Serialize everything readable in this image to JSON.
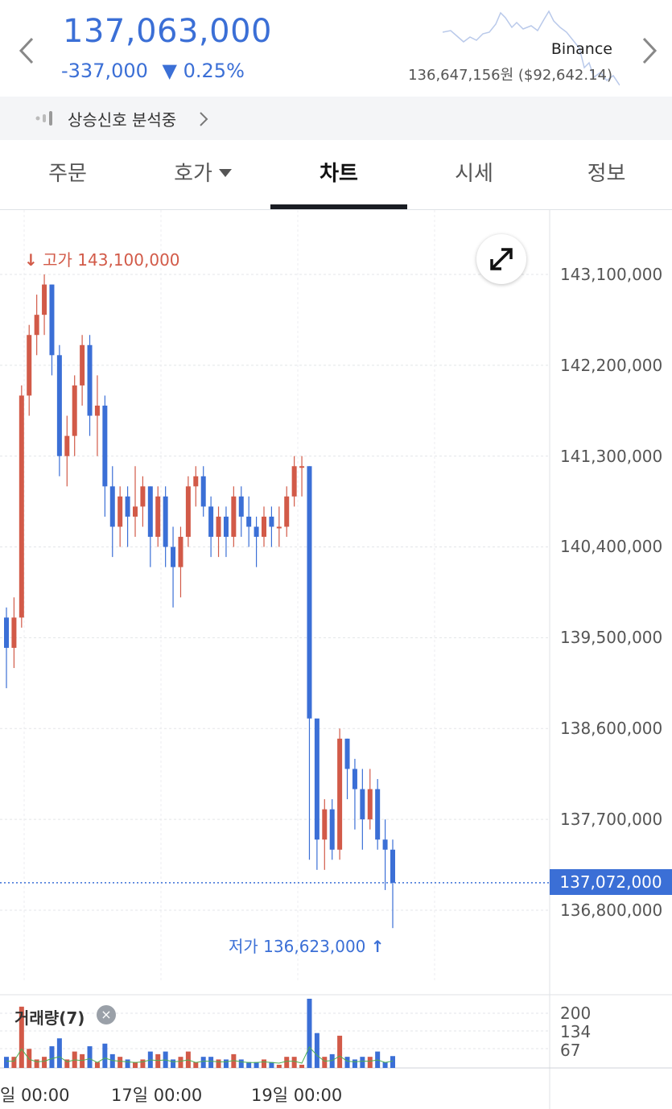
{
  "header": {
    "price": "137,063,000",
    "change_amount": "-337,000",
    "change_rate": "▼ 0.25%",
    "exchange": "Binance",
    "reference_price": "136,647,156원 ($92,642.14)",
    "prev_icon": "chevron-left-icon",
    "next_icon": "chevron-right-icon"
  },
  "signal": {
    "label": "상승신호 분석중",
    "icon": "signal-bars-icon"
  },
  "tabs": [
    {
      "label": "주문",
      "active": false
    },
    {
      "label": "호가",
      "active": false,
      "has_dropdown": true
    },
    {
      "label": "차트",
      "active": true
    },
    {
      "label": "시세",
      "active": false
    },
    {
      "label": "정보",
      "active": false
    }
  ],
  "chart": {
    "high_label": "고가 143,100,000",
    "low_label": "저가 136,623,000",
    "current_price": "137,072,000",
    "expand_icon": "expand-icon",
    "colors": {
      "up": "#d25a48",
      "down": "#3b6fd6",
      "ma": "#4caf50"
    },
    "y_ticks": [
      "143,100,000",
      "142,200,000",
      "141,300,000",
      "140,400,000",
      "139,500,000",
      "138,600,000",
      "137,700,000",
      "136,800,000"
    ],
    "volume_title": "거래량(7)",
    "volume_ticks": [
      "200",
      "134",
      "67"
    ],
    "x_ticks": [
      "일 00:00",
      "17일 00:00",
      "19일 00:00"
    ]
  },
  "chart_data": {
    "type": "candlestick",
    "ylim": [
      136200000,
      143800000
    ],
    "high": 143100000,
    "low": 136623000,
    "current": 137072000,
    "candles": [
      [
        139700000,
        139400000,
        139800000,
        139000000
      ],
      [
        139400000,
        139700000,
        139900000,
        139200000
      ],
      [
        139700000,
        141900000,
        142000000,
        139600000
      ],
      [
        141900000,
        142500000,
        142600000,
        141700000
      ],
      [
        142500000,
        142700000,
        142900000,
        142300000
      ],
      [
        142700000,
        143000000,
        143100000,
        142500000
      ],
      [
        143000000,
        142300000,
        143000000,
        142100000
      ],
      [
        142300000,
        141300000,
        142400000,
        141100000
      ],
      [
        141300000,
        141500000,
        141700000,
        141000000
      ],
      [
        141500000,
        142000000,
        142100000,
        141300000
      ],
      [
        142000000,
        142400000,
        142500000,
        141800000
      ],
      [
        142400000,
        141700000,
        142500000,
        141500000
      ],
      [
        141700000,
        141800000,
        142100000,
        141300000
      ],
      [
        141800000,
        141000000,
        141900000,
        140700000
      ],
      [
        141000000,
        140600000,
        141200000,
        140300000
      ],
      [
        140600000,
        140900000,
        141000000,
        140400000
      ],
      [
        140900000,
        140700000,
        141000000,
        140400000
      ],
      [
        140700000,
        140800000,
        141200000,
        140500000
      ],
      [
        140800000,
        141000000,
        141100000,
        140600000
      ],
      [
        141000000,
        140500000,
        141000000,
        140200000
      ],
      [
        140500000,
        140900000,
        141000000,
        140400000
      ],
      [
        140900000,
        140400000,
        141000000,
        140200000
      ],
      [
        140400000,
        140200000,
        140600000,
        139800000
      ],
      [
        140200000,
        140500000,
        140600000,
        139900000
      ],
      [
        140500000,
        141000000,
        141100000,
        140400000
      ],
      [
        141000000,
        141100000,
        141200000,
        140800000
      ],
      [
        141100000,
        140800000,
        141200000,
        140700000
      ],
      [
        140800000,
        140500000,
        140900000,
        140300000
      ],
      [
        140500000,
        140700000,
        140800000,
        140300000
      ],
      [
        140700000,
        140500000,
        140800000,
        140300000
      ],
      [
        140500000,
        140900000,
        141000000,
        140400000
      ],
      [
        140900000,
        140700000,
        141000000,
        140500000
      ],
      [
        140700000,
        140600000,
        140900000,
        140400000
      ],
      [
        140600000,
        140500000,
        140700000,
        140200000
      ],
      [
        140500000,
        140700000,
        140800000,
        140400000
      ],
      [
        140700000,
        140600000,
        140800000,
        140400000
      ],
      [
        140600000,
        140600000,
        140800000,
        140400000
      ],
      [
        140600000,
        140900000,
        141000000,
        140500000
      ],
      [
        140900000,
        141200000,
        141300000,
        140800000
      ],
      [
        141200000,
        141200000,
        141300000,
        140900000
      ],
      [
        141200000,
        138700000,
        141200000,
        137300000
      ],
      [
        138700000,
        137500000,
        137900000,
        137200000
      ],
      [
        137500000,
        137800000,
        137900000,
        137200000
      ],
      [
        137800000,
        137400000,
        137900000,
        137300000
      ],
      [
        137400000,
        138500000,
        138600000,
        137300000
      ],
      [
        138500000,
        138200000,
        138500000,
        137900000
      ],
      [
        138200000,
        138000000,
        138300000,
        137600000
      ],
      [
        138000000,
        137700000,
        138200000,
        137400000
      ],
      [
        137700000,
        138000000,
        138200000,
        137600000
      ],
      [
        138000000,
        137500000,
        138100000,
        137400000
      ],
      [
        137500000,
        137400000,
        137700000,
        137000000
      ],
      [
        137400000,
        137072000,
        137500000,
        136623000
      ]
    ]
  }
}
